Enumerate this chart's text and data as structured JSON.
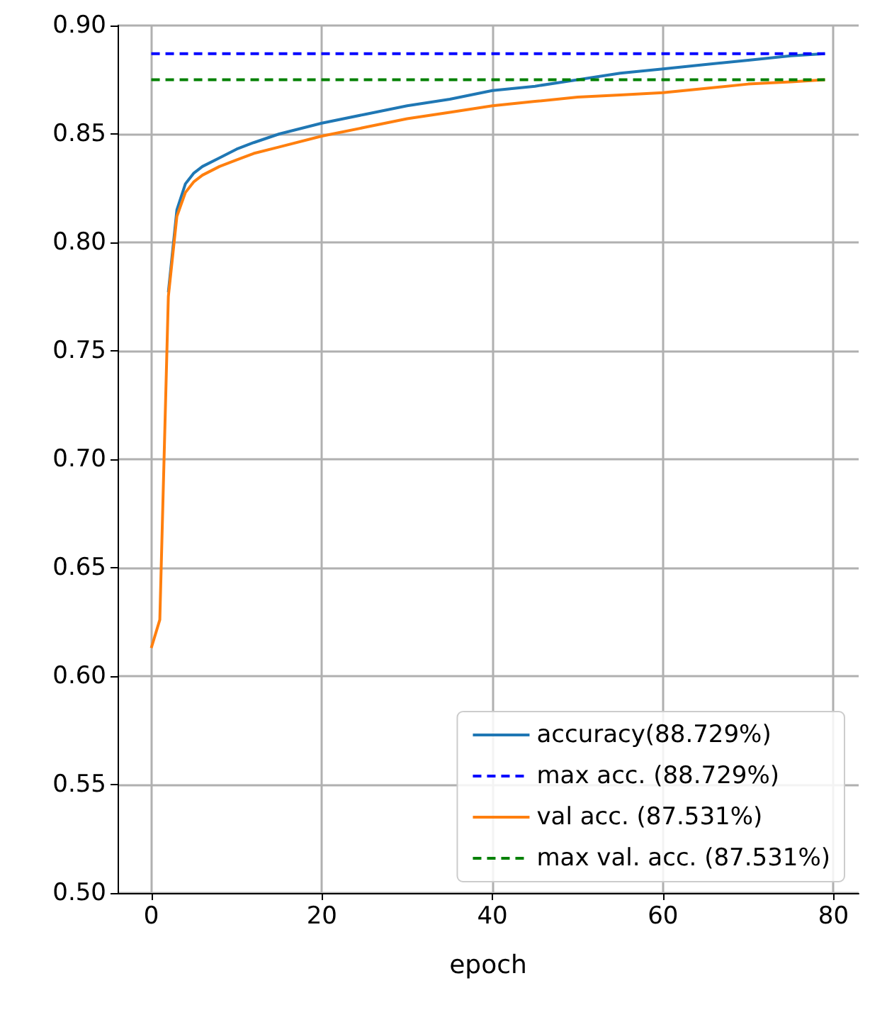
{
  "chart_data": {
    "type": "line",
    "xlabel": "epoch",
    "xlim": [
      -3.95,
      82.95
    ],
    "xticks": [
      0,
      20,
      40,
      60,
      80
    ],
    "ylim": [
      0.5,
      0.9
    ],
    "yticks": [
      {
        "value": 0.5,
        "label": "0.50"
      },
      {
        "value": 0.55,
        "label": "0.55"
      },
      {
        "value": 0.6,
        "label": "0.60"
      },
      {
        "value": 0.65,
        "label": "0.65"
      },
      {
        "value": 0.7,
        "label": "0.70"
      },
      {
        "value": 0.75,
        "label": "0.75"
      },
      {
        "value": 0.8,
        "label": "0.80"
      },
      {
        "value": 0.85,
        "label": "0.85"
      },
      {
        "value": 0.9,
        "label": "0.90"
      }
    ],
    "x": [
      0,
      1,
      2,
      3,
      4,
      5,
      6,
      8,
      10,
      12,
      15,
      20,
      25,
      30,
      35,
      40,
      45,
      50,
      55,
      60,
      65,
      70,
      75,
      79
    ],
    "series": [
      {
        "name": "accuracy(88.729%)",
        "color": "#1f77b4",
        "line_style": "solid",
        "values": [
          null,
          null,
          0.777,
          0.815,
          0.827,
          0.832,
          0.835,
          0.839,
          0.843,
          0.846,
          0.85,
          0.855,
          0.859,
          0.863,
          0.866,
          0.87,
          0.872,
          0.875,
          0.878,
          0.88,
          0.882,
          0.884,
          0.886,
          0.887
        ]
      },
      {
        "name": "max acc. (88.729%)",
        "color": "#0000ff",
        "line_style": "dashed",
        "values": [
          0.887,
          0.887,
          0.887,
          0.887,
          0.887,
          0.887,
          0.887,
          0.887,
          0.887,
          0.887,
          0.887,
          0.887,
          0.887,
          0.887,
          0.887,
          0.887,
          0.887,
          0.887,
          0.887,
          0.887,
          0.887,
          0.887,
          0.887,
          0.887
        ]
      },
      {
        "name": "val acc. (87.531%)",
        "color": "#ff7f0e",
        "line_style": "solid",
        "values": [
          0.613,
          0.626,
          0.775,
          0.812,
          0.823,
          0.828,
          0.831,
          0.835,
          0.838,
          0.841,
          0.844,
          0.849,
          0.853,
          0.857,
          0.86,
          0.863,
          0.865,
          0.867,
          0.868,
          0.869,
          0.871,
          0.873,
          0.874,
          0.875
        ]
      },
      {
        "name": "max val. acc. (87.531%)",
        "color": "#008000",
        "line_style": "dashed",
        "values": [
          0.875,
          0.875,
          0.875,
          0.875,
          0.875,
          0.875,
          0.875,
          0.875,
          0.875,
          0.875,
          0.875,
          0.875,
          0.875,
          0.875,
          0.875,
          0.875,
          0.875,
          0.875,
          0.875,
          0.875,
          0.875,
          0.875,
          0.875,
          0.875
        ]
      }
    ],
    "grid": true,
    "legend": "bottom right",
    "marker": "none"
  }
}
